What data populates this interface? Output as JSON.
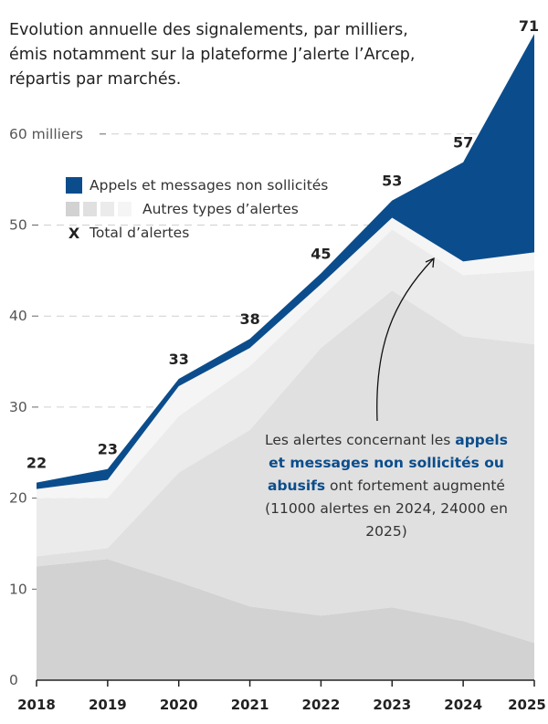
{
  "title": "Evolution annuelle des signalements, par milliers, émis notamment sur la plateforme J’alerte l’Arcep, répartis par marchés.",
  "chart_data": {
    "type": "area",
    "stacked": true,
    "categories": [
      "2018",
      "2019",
      "2020",
      "2021",
      "2022",
      "2023",
      "2024",
      "2025"
    ],
    "ylim": [
      0,
      72
    ],
    "yticks": [
      0,
      10,
      20,
      30,
      40,
      50,
      60
    ],
    "ytick_labels": [
      "0",
      "10",
      "20",
      "30",
      "40",
      "50",
      "60 milliers"
    ],
    "grid": true,
    "series": [
      {
        "group": "Autres types d’alertes",
        "color": "#d2d2d2",
        "values": [
          12.5,
          13.3,
          10.8,
          8.1,
          7.1,
          8.0,
          6.5,
          4.1
        ]
      },
      {
        "group": "Autres types d’alertes",
        "color": "#e0e0e0",
        "values": [
          1.1,
          1.2,
          12.0,
          19.4,
          29.4,
          34.8,
          31.3,
          32.8
        ]
      },
      {
        "group": "Autres types d’alertes",
        "color": "#ebebeb",
        "values": [
          6.4,
          5.5,
          6.2,
          7.0,
          5.5,
          6.7,
          6.7,
          8.1
        ]
      },
      {
        "group": "Autres types d’alertes",
        "color": "#f5f5f5",
        "values": [
          1.0,
          2.0,
          3.3,
          2.0,
          1.5,
          1.3,
          1.5,
          2.0
        ]
      },
      {
        "name": "Appels et messages non sollicités",
        "color": "#0b4d8c",
        "values": [
          0.7,
          1.2,
          0.8,
          1.0,
          1.2,
          1.9,
          10.9,
          24.0
        ]
      }
    ],
    "totals": [
      21.7,
      23.2,
      33.1,
      37.5,
      44.7,
      52.7,
      56.9,
      71.0
    ],
    "total_labels": [
      "22",
      "23",
      "33",
      "38",
      "45",
      "53",
      "57",
      "71"
    ],
    "legend": {
      "placement": "top-left",
      "entries": [
        "Appels et messages non sollicités",
        "Autres types d’alertes",
        "Total d’alertes"
      ],
      "total_marker": "X"
    },
    "annotation": {
      "before": "Les alertes concernant les ",
      "highlight": "appels et messages non sollicités ou abusifs",
      "after": " ont fortement augmenté (11000 alertes en 2024, 24000 en 2025)",
      "points_to": "2023-2024 appels layer"
    }
  }
}
